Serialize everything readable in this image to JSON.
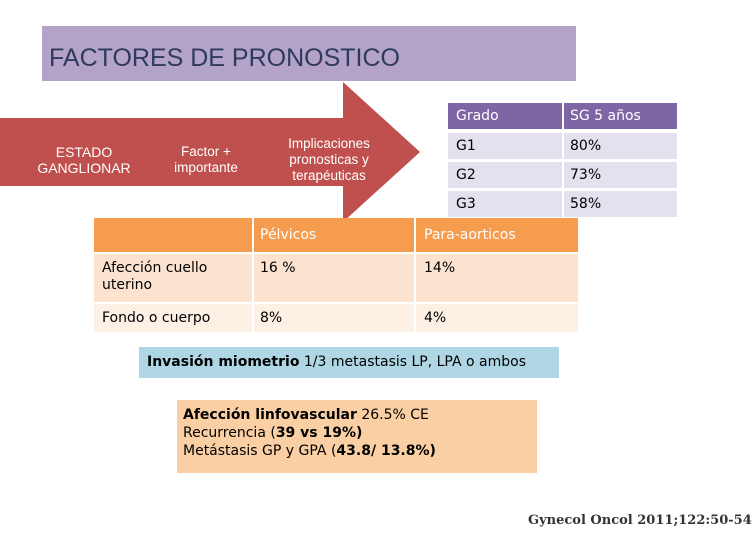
{
  "title": "FACTORES DE PRONOSTICO",
  "arrow": {
    "estado": "ESTADO GANGLIONAR",
    "factor": "Factor + importante",
    "implicaciones": "Implicaciones pronosticas y terapéuticas",
    "color": "#c0504d"
  },
  "grado_table": {
    "headers": [
      "Grado",
      "SG 5 años"
    ],
    "rows": [
      [
        "G1",
        "80%"
      ],
      [
        "G2",
        "73%"
      ],
      [
        "G3",
        "58%"
      ]
    ]
  },
  "main_table": {
    "headers": [
      "",
      "Pélvicos",
      "Para-aorticos"
    ],
    "rows": [
      [
        "Afección cuello uterino",
        "16 %",
        "14%"
      ],
      [
        "Fondo o cuerpo",
        "8%",
        "4%"
      ]
    ]
  },
  "invasion": {
    "bold": "Invasión miometrio",
    "rest": " 1/3 metastasis LP, LPA o ambos"
  },
  "afeccion": {
    "line1_bold": "Afección linfovascular",
    "line1_rest": " 26.5% CE",
    "line2_pre": "Recurrencia (",
    "line2_bold": "39 vs 19%)",
    "line3_pre": "Metástasis GP y GPA (",
    "line3_bold": "43.8/ 13.8%)"
  },
  "citation": "Gynecol Oncol 2011;122:50-54"
}
